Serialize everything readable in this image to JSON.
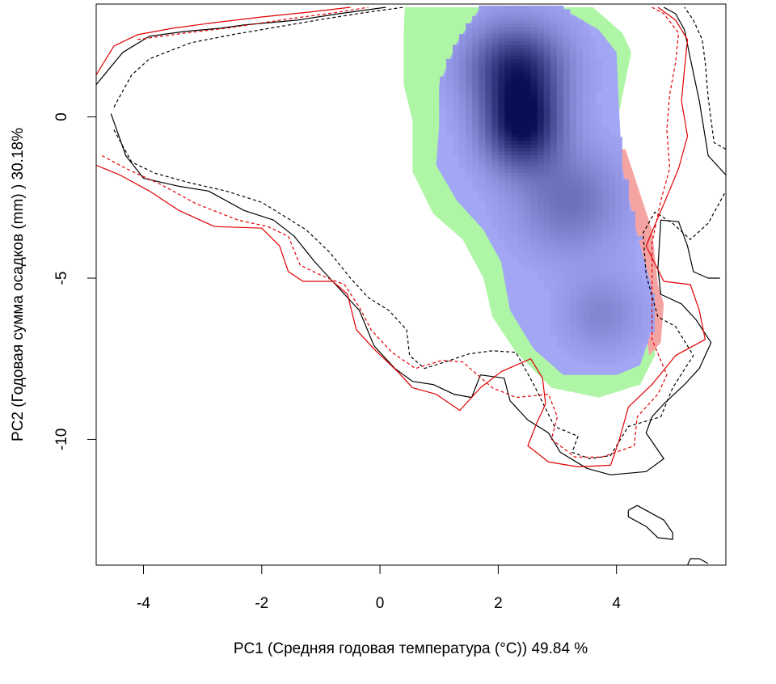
{
  "chart_data": {
    "type": "density-niche-overlap",
    "xlabel": "PC1 (Средняя годовая температура (°C)) 49.84 %",
    "ylabel": "PC2 (Годовая сумма осадков  (mm) ) 30.18%",
    "xlim": [
      -4.8,
      5.85
    ],
    "ylim": [
      -13.9,
      3.5
    ],
    "x_ticks": [
      -4,
      -2,
      0,
      2,
      4
    ],
    "y_ticks": [
      0,
      -5,
      -10
    ],
    "grid": false,
    "legend": "none",
    "colors": {
      "green_zone": "#aef5a6",
      "blue_zone": "#a3a6f5",
      "red_zone": "#f5a4a4",
      "density_core": "#0a0f55",
      "env_solid_a": "#000000",
      "env_dashed_a": "#000000",
      "env_solid_b": "#e00000",
      "env_dashed_b": "#e00000"
    },
    "density_peaks": [
      {
        "x": 2.4,
        "y": -0.2,
        "sx": 0.45,
        "sy": 0.95,
        "w": 1.0
      },
      {
        "x": 2.3,
        "y": 1.6,
        "sx": 0.55,
        "sy": 0.9,
        "w": 0.75
      },
      {
        "x": 3.2,
        "y": -2.6,
        "sx": 0.6,
        "sy": 1.1,
        "w": 0.35
      },
      {
        "x": 3.75,
        "y": -6.1,
        "sx": 0.45,
        "sy": 0.8,
        "w": 0.22
      }
    ],
    "green_region": [
      [
        0.42,
        3.4
      ],
      [
        1.35,
        3.4
      ],
      [
        3.6,
        3.4
      ],
      [
        4.1,
        2.6
      ],
      [
        4.25,
        2.0
      ],
      [
        4.05,
        0.2
      ],
      [
        4.0,
        -1.5
      ],
      [
        4.2,
        -2.9
      ],
      [
        4.5,
        -4.3
      ],
      [
        4.7,
        -6.0
      ],
      [
        4.65,
        -7.4
      ],
      [
        4.4,
        -8.3
      ],
      [
        3.7,
        -8.7
      ],
      [
        2.9,
        -8.4
      ],
      [
        2.3,
        -7.3
      ],
      [
        1.9,
        -6.2
      ],
      [
        1.75,
        -5.0
      ],
      [
        1.4,
        -3.8
      ],
      [
        0.9,
        -3.0
      ],
      [
        0.55,
        -1.7
      ],
      [
        0.55,
        -0.1
      ],
      [
        0.4,
        1.0
      ],
      [
        0.4,
        2.6
      ],
      [
        0.42,
        3.4
      ]
    ],
    "blue_region": [
      [
        1.7,
        3.4
      ],
      [
        3.05,
        3.4
      ],
      [
        3.7,
        2.7
      ],
      [
        4.0,
        2.0
      ],
      [
        4.05,
        0.0
      ],
      [
        4.1,
        -1.6
      ],
      [
        4.3,
        -3.3
      ],
      [
        4.6,
        -5.3
      ],
      [
        4.6,
        -6.6
      ],
      [
        4.4,
        -7.7
      ],
      [
        4.0,
        -8.0
      ],
      [
        3.1,
        -8.0
      ],
      [
        2.6,
        -7.2
      ],
      [
        2.2,
        -6.0
      ],
      [
        2.05,
        -4.5
      ],
      [
        1.75,
        -3.5
      ],
      [
        1.3,
        -2.6
      ],
      [
        0.95,
        -1.5
      ],
      [
        1.0,
        -0.3
      ],
      [
        1.0,
        1.0
      ],
      [
        1.3,
        2.3
      ],
      [
        1.7,
        3.4
      ]
    ],
    "red_region": [
      [
        4.0,
        -1.0
      ],
      [
        4.15,
        -1.0
      ],
      [
        4.6,
        -3.5
      ],
      [
        4.7,
        -5.2
      ],
      [
        4.8,
        -5.8
      ],
      [
        4.75,
        -7.0
      ],
      [
        4.55,
        -7.4
      ],
      [
        4.35,
        -4.5
      ],
      [
        4.1,
        -2.5
      ],
      [
        4.0,
        -1.0
      ]
    ],
    "contours": [
      {
        "style": "solid",
        "color": "#000000",
        "points": [
          [
            -4.8,
            1.0
          ],
          [
            -4.35,
            2.0
          ],
          [
            -3.9,
            2.5
          ],
          [
            -3.3,
            2.65
          ],
          [
            -2.7,
            2.75
          ],
          [
            -2.3,
            2.85
          ],
          [
            -1.4,
            3.0
          ],
          [
            -0.7,
            3.2
          ],
          [
            0.1,
            3.4
          ]
        ]
      },
      {
        "style": "solid",
        "color": "#000000",
        "points": [
          [
            -4.55,
            0.1
          ],
          [
            -4.3,
            -1.2
          ],
          [
            -4.0,
            -1.9
          ],
          [
            -3.4,
            -2.15
          ],
          [
            -2.9,
            -2.3
          ],
          [
            -2.3,
            -2.9
          ],
          [
            -1.8,
            -3.2
          ],
          [
            -1.45,
            -3.7
          ],
          [
            -1.1,
            -4.5
          ],
          [
            -0.7,
            -5.3
          ],
          [
            -0.35,
            -6.0
          ],
          [
            -0.1,
            -7.1
          ],
          [
            0.25,
            -7.8
          ],
          [
            0.55,
            -8.2
          ],
          [
            0.9,
            -8.3
          ],
          [
            1.25,
            -8.6
          ],
          [
            1.55,
            -8.7
          ],
          [
            1.7,
            -8.0
          ],
          [
            2.1,
            -8.1
          ],
          [
            2.2,
            -8.8
          ],
          [
            2.5,
            -9.4
          ],
          [
            2.85,
            -9.8
          ],
          [
            3.05,
            -10.4
          ],
          [
            3.5,
            -10.9
          ],
          [
            3.9,
            -11.1
          ],
          [
            4.5,
            -11.0
          ],
          [
            4.8,
            -10.6
          ],
          [
            4.5,
            -9.8
          ],
          [
            4.6,
            -9.3
          ],
          [
            4.8,
            -8.9
          ],
          [
            5.15,
            -8.3
          ],
          [
            5.4,
            -7.8
          ],
          [
            5.6,
            -7.0
          ],
          [
            5.35,
            -6.3
          ],
          [
            5.1,
            -5.8
          ],
          [
            4.75,
            -5.5
          ],
          [
            4.7,
            -4.7
          ],
          [
            4.75,
            -3.2
          ],
          [
            5.05,
            -3.25
          ],
          [
            5.2,
            -4.0
          ],
          [
            5.3,
            -4.8
          ],
          [
            5.55,
            -5.0
          ],
          [
            5.75,
            -5.0
          ]
        ]
      },
      {
        "style": "solid",
        "color": "#000000",
        "points": [
          [
            5.85,
            -1.8
          ],
          [
            5.55,
            -1.2
          ],
          [
            5.4,
            0.5
          ],
          [
            5.25,
            1.8
          ],
          [
            5.15,
            2.7
          ],
          [
            5.0,
            3.2
          ],
          [
            4.8,
            3.4
          ]
        ]
      },
      {
        "style": "solid",
        "color": "#000000",
        "points": [
          [
            4.2,
            -12.2
          ],
          [
            4.35,
            -12.05
          ],
          [
            4.6,
            -12.3
          ],
          [
            4.8,
            -12.5
          ],
          [
            4.95,
            -12.9
          ],
          [
            4.95,
            -13.1
          ],
          [
            4.7,
            -13.05
          ],
          [
            4.5,
            -12.7
          ],
          [
            4.2,
            -12.4
          ],
          [
            4.2,
            -12.2
          ]
        ]
      },
      {
        "style": "solid",
        "color": "#000000",
        "points": [
          [
            5.2,
            -13.9
          ],
          [
            5.25,
            -13.7
          ],
          [
            5.4,
            -13.7
          ],
          [
            5.55,
            -13.85
          ]
        ]
      },
      {
        "style": "dashed",
        "color": "#000000",
        "points": [
          [
            -4.5,
            0.3
          ],
          [
            -4.2,
            1.3
          ],
          [
            -3.9,
            1.8
          ],
          [
            -3.2,
            2.3
          ],
          [
            -2.5,
            2.55
          ],
          [
            -1.7,
            2.8
          ],
          [
            -0.9,
            3.05
          ],
          [
            -0.2,
            3.25
          ],
          [
            0.4,
            3.4
          ]
        ]
      },
      {
        "style": "dashed",
        "color": "#000000",
        "points": [
          [
            -4.5,
            -0.4
          ],
          [
            -4.2,
            -1.4
          ],
          [
            -3.8,
            -1.75
          ],
          [
            -3.2,
            -2.05
          ],
          [
            -2.6,
            -2.3
          ],
          [
            -2.0,
            -2.65
          ],
          [
            -1.6,
            -3.1
          ],
          [
            -1.25,
            -3.5
          ],
          [
            -0.85,
            -4.2
          ],
          [
            -0.5,
            -5.0
          ],
          [
            -0.2,
            -5.6
          ],
          [
            0.15,
            -6.0
          ],
          [
            0.45,
            -6.6
          ],
          [
            0.5,
            -7.4
          ],
          [
            0.75,
            -7.8
          ],
          [
            1.1,
            -7.6
          ],
          [
            1.5,
            -7.35
          ],
          [
            1.9,
            -7.25
          ],
          [
            2.3,
            -7.3
          ],
          [
            2.6,
            -8.3
          ],
          [
            2.95,
            -9.6
          ],
          [
            3.35,
            -9.9
          ],
          [
            3.25,
            -10.4
          ],
          [
            3.55,
            -10.6
          ],
          [
            3.9,
            -10.5
          ],
          [
            4.2,
            -9.6
          ],
          [
            4.75,
            -9.3
          ],
          [
            4.95,
            -8.4
          ],
          [
            5.3,
            -7.4
          ],
          [
            5.0,
            -6.5
          ],
          [
            4.7,
            -6.2
          ],
          [
            4.5,
            -4.9
          ],
          [
            4.45,
            -3.6
          ],
          [
            4.65,
            -2.95
          ],
          [
            4.95,
            -3.3
          ],
          [
            5.25,
            -3.8
          ],
          [
            5.55,
            -3.3
          ],
          [
            5.85,
            -2.3
          ]
        ]
      },
      {
        "style": "dashed",
        "color": "#000000",
        "points": [
          [
            5.85,
            -1.0
          ],
          [
            5.65,
            -0.8
          ],
          [
            5.55,
            0.6
          ],
          [
            5.5,
            1.7
          ],
          [
            5.45,
            2.4
          ],
          [
            5.3,
            3.0
          ],
          [
            5.15,
            3.4
          ]
        ]
      },
      {
        "style": "solid",
        "color": "#e00000",
        "points": [
          [
            -4.8,
            1.3
          ],
          [
            -4.5,
            2.2
          ],
          [
            -4.1,
            2.55
          ],
          [
            -3.5,
            2.75
          ],
          [
            -2.9,
            2.9
          ],
          [
            -2.0,
            3.1
          ],
          [
            -1.2,
            3.25
          ],
          [
            -0.5,
            3.4
          ]
        ]
      },
      {
        "style": "solid",
        "color": "#e00000",
        "points": [
          [
            -4.8,
            -1.5
          ],
          [
            -4.4,
            -1.8
          ],
          [
            -3.9,
            -2.3
          ],
          [
            -3.4,
            -2.9
          ],
          [
            -2.8,
            -3.4
          ],
          [
            -2.0,
            -3.45
          ],
          [
            -1.7,
            -4.0
          ],
          [
            -1.55,
            -4.8
          ],
          [
            -1.3,
            -5.1
          ],
          [
            -0.8,
            -5.1
          ],
          [
            -0.55,
            -5.5
          ],
          [
            -0.4,
            -6.6
          ],
          [
            -0.1,
            -7.2
          ],
          [
            0.3,
            -7.9
          ],
          [
            0.55,
            -8.4
          ],
          [
            0.95,
            -8.6
          ],
          [
            1.35,
            -9.1
          ],
          [
            1.7,
            -8.4
          ],
          [
            2.05,
            -7.9
          ],
          [
            2.55,
            -7.5
          ],
          [
            2.75,
            -8.1
          ],
          [
            2.8,
            -8.9
          ],
          [
            2.65,
            -9.5
          ],
          [
            2.5,
            -10.2
          ],
          [
            2.85,
            -10.7
          ],
          [
            3.35,
            -10.85
          ],
          [
            3.9,
            -10.8
          ],
          [
            4.05,
            -10.0
          ],
          [
            4.2,
            -9.0
          ],
          [
            4.6,
            -8.3
          ],
          [
            5.0,
            -7.4
          ],
          [
            5.5,
            -6.9
          ],
          [
            5.4,
            -6.0
          ],
          [
            5.25,
            -5.2
          ],
          [
            4.8,
            -5.1
          ],
          [
            4.5,
            -4.0
          ],
          [
            4.8,
            -2.7
          ],
          [
            5.05,
            -1.6
          ],
          [
            5.2,
            -0.6
          ],
          [
            5.1,
            0.5
          ],
          [
            5.15,
            1.5
          ],
          [
            5.2,
            2.4
          ],
          [
            5.0,
            3.0
          ],
          [
            4.7,
            3.4
          ]
        ]
      },
      {
        "style": "dashed",
        "color": "#e00000",
        "points": [
          [
            -4.1,
            2.4
          ],
          [
            -3.3,
            2.6
          ],
          [
            -2.6,
            2.75
          ],
          [
            -1.5,
            3.05
          ],
          [
            -0.7,
            3.25
          ],
          [
            -0.2,
            3.4
          ]
        ]
      },
      {
        "style": "dashed",
        "color": "#e00000",
        "points": [
          [
            -4.7,
            -1.2
          ],
          [
            -4.3,
            -1.6
          ],
          [
            -3.7,
            -2.1
          ],
          [
            -3.1,
            -2.7
          ],
          [
            -2.4,
            -3.2
          ],
          [
            -1.9,
            -3.4
          ],
          [
            -1.55,
            -3.7
          ],
          [
            -1.35,
            -4.6
          ],
          [
            -0.95,
            -4.95
          ],
          [
            -0.6,
            -5.2
          ],
          [
            -0.35,
            -5.9
          ],
          [
            -0.15,
            -6.6
          ],
          [
            0.2,
            -7.3
          ],
          [
            0.6,
            -7.8
          ],
          [
            1.05,
            -7.55
          ],
          [
            1.4,
            -7.6
          ],
          [
            1.9,
            -8.4
          ],
          [
            2.3,
            -8.7
          ],
          [
            2.85,
            -8.6
          ],
          [
            3.0,
            -9.3
          ],
          [
            2.9,
            -10.0
          ],
          [
            3.3,
            -10.55
          ],
          [
            3.75,
            -10.55
          ],
          [
            4.3,
            -10.2
          ],
          [
            4.35,
            -9.3
          ],
          [
            4.7,
            -8.6
          ],
          [
            4.85,
            -8.0
          ],
          [
            4.6,
            -6.9
          ],
          [
            4.6,
            -5.4
          ],
          [
            4.6,
            -3.9
          ],
          [
            4.75,
            -2.6
          ],
          [
            4.9,
            -1.6
          ],
          [
            4.85,
            -0.4
          ],
          [
            4.9,
            0.7
          ],
          [
            5.0,
            1.7
          ],
          [
            5.05,
            2.6
          ],
          [
            4.8,
            3.2
          ],
          [
            4.6,
            3.4
          ]
        ]
      }
    ]
  }
}
